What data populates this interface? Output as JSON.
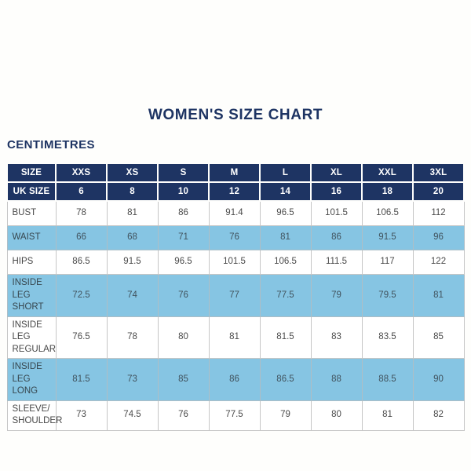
{
  "page": {
    "title": "WOMEN'S SIZE CHART",
    "unit_label": "CENTIMETRES"
  },
  "colors": {
    "header_bg": "#1e3463",
    "header_text": "#ffffff",
    "alt_row_bg": "#86c5e3",
    "title_text": "#1e3463",
    "body_text": "#4a4a4a",
    "cell_border": "#c6c6c6",
    "background": "#fefefc"
  },
  "chart_data": {
    "type": "table",
    "title": "WOMEN'S SIZE CHART",
    "unit": "CENTIMETRES",
    "header_rows": [
      {
        "label": "SIZE",
        "values": [
          "XXS",
          "XS",
          "S",
          "M",
          "L",
          "XL",
          "XXL",
          "3XL"
        ]
      },
      {
        "label": "UK SIZE",
        "values": [
          "6",
          "8",
          "10",
          "12",
          "14",
          "16",
          "18",
          "20"
        ]
      }
    ],
    "rows": [
      {
        "label": "BUST",
        "highlighted": false,
        "values": [
          "78",
          "81",
          "86",
          "91.4",
          "96.5",
          "101.5",
          "106.5",
          "112"
        ]
      },
      {
        "label": "WAIST",
        "highlighted": true,
        "values": [
          "66",
          "68",
          "71",
          "76",
          "81",
          "86",
          "91.5",
          "96"
        ]
      },
      {
        "label": "HIPS",
        "highlighted": false,
        "values": [
          "86.5",
          "91.5",
          "96.5",
          "101.5",
          "106.5",
          "111.5",
          "117",
          "122"
        ]
      },
      {
        "label": "INSIDE LEG\nSHORT",
        "highlighted": true,
        "values": [
          "72.5",
          "74",
          "76",
          "77",
          "77.5",
          "79",
          "79.5",
          "81"
        ]
      },
      {
        "label": "INSIDE LEG\nREGULAR",
        "highlighted": false,
        "values": [
          "76.5",
          "78",
          "80",
          "81",
          "81.5",
          "83",
          "83.5",
          "85"
        ]
      },
      {
        "label": "INSIDE LEG\nLONG",
        "highlighted": true,
        "values": [
          "81.5",
          "73",
          "85",
          "86",
          "86.5",
          "88",
          "88.5",
          "90"
        ]
      },
      {
        "label": "SLEEVE/\nSHOULDER",
        "highlighted": false,
        "values": [
          "73",
          "74.5",
          "76",
          "77.5",
          "79",
          "80",
          "81",
          "82"
        ]
      }
    ]
  }
}
